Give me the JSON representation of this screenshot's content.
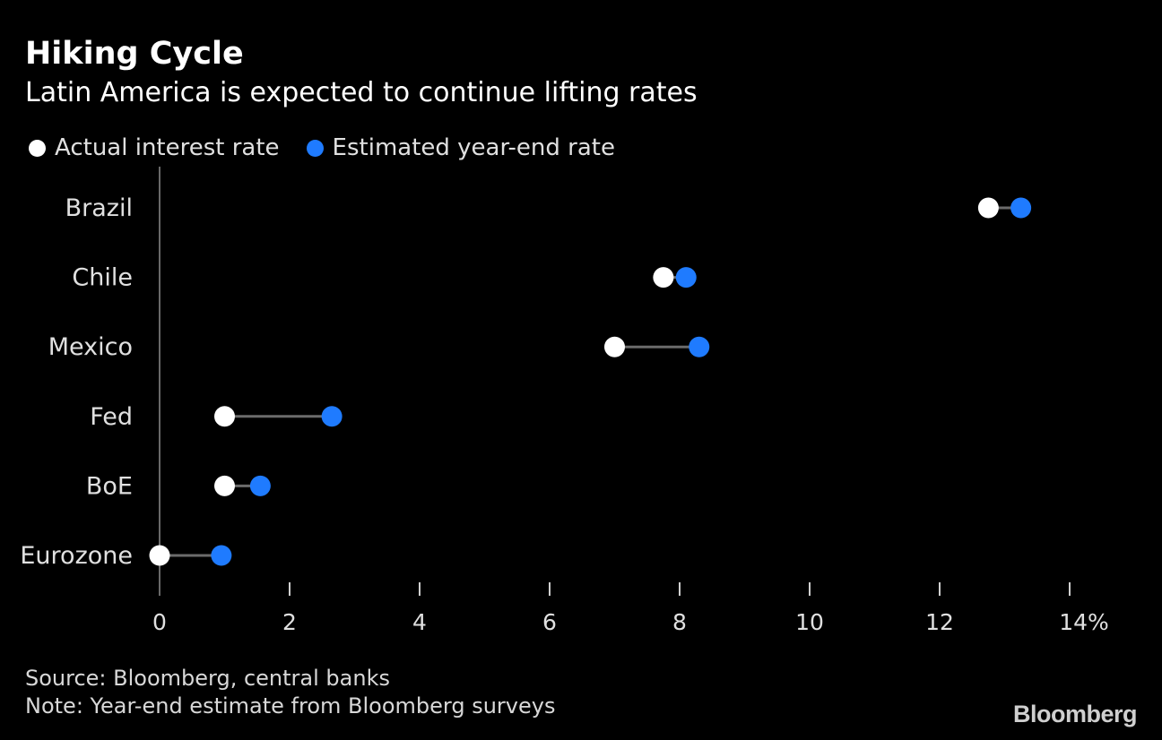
{
  "title": "Hiking Cycle",
  "subtitle": "Latin America is expected to continue lifting rates",
  "legend": {
    "actual_label": "Actual interest rate",
    "estimate_label": "Estimated year-end rate"
  },
  "colors": {
    "actual": "#ffffff",
    "estimate": "#1f7bff",
    "connector": "#6b6b6b",
    "axis": "#8a8a8a"
  },
  "chart_data": {
    "type": "scatter",
    "subtype": "dumbbell",
    "categories": [
      "Brazil",
      "Chile",
      "Mexico",
      "Fed",
      "BoE",
      "Eurozone"
    ],
    "series": [
      {
        "name": "Actual interest rate",
        "values": [
          12.75,
          7.75,
          7.0,
          1.0,
          1.0,
          0.0
        ]
      },
      {
        "name": "Estimated year-end rate",
        "values": [
          13.25,
          8.1,
          8.3,
          2.65,
          1.55,
          0.95
        ]
      }
    ],
    "xlim": [
      0,
      14
    ],
    "xticks": [
      0,
      2,
      4,
      6,
      8,
      10,
      12,
      14
    ],
    "xtick_labels": [
      "0",
      "2",
      "4",
      "6",
      "8",
      "10",
      "12",
      "14%"
    ],
    "legend_position": "top-left",
    "grid": false
  },
  "footer": {
    "source": "Source: Bloomberg, central banks",
    "note": "Note: Year-end estimate from Bloomberg surveys"
  },
  "brand": "Bloomberg"
}
